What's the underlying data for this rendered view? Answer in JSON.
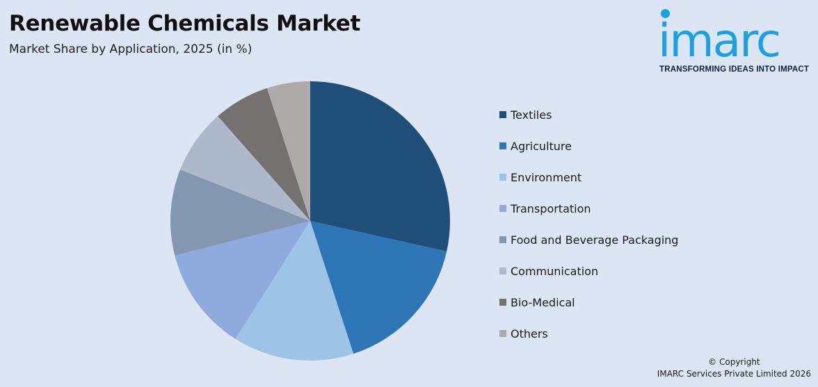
{
  "header": {
    "title": "Renewable Chemicals Market",
    "subtitle": "Market Share by Application, 2025 (in %)"
  },
  "brand": {
    "name": "imarc",
    "tagline": "TRANSFORMING IDEAS INTO IMPACT",
    "color": "#1aa0e6"
  },
  "chart_data": {
    "type": "pie",
    "title": "Renewable Chemicals Market",
    "subtitle": "Market Share by Application, 2025 (in %)",
    "legend_position": "right",
    "start_angle": "12 o'clock, clockwise",
    "slices": [
      {
        "label": "Textiles",
        "value": 28.5,
        "color": "#1f4e79"
      },
      {
        "label": "Agriculture",
        "value": 16.5,
        "color": "#2e75b6"
      },
      {
        "label": "Environment",
        "value": 14.0,
        "color": "#9dc3e6"
      },
      {
        "label": "Transportation",
        "value": 12.0,
        "color": "#8faadc"
      },
      {
        "label": "Food and Beverage Packaging",
        "value": 10.0,
        "color": "#8497b0"
      },
      {
        "label": "Communication",
        "value": 7.5,
        "color": "#adb9ca"
      },
      {
        "label": "Bio-Medical",
        "value": 6.5,
        "color": "#767171"
      },
      {
        "label": "Others",
        "value": 5.0,
        "color": "#aeaaaa"
      }
    ]
  },
  "footer": {
    "copyright_line1": "© Copyright",
    "copyright_line2": "IMARC Services Private Limited 2026"
  }
}
